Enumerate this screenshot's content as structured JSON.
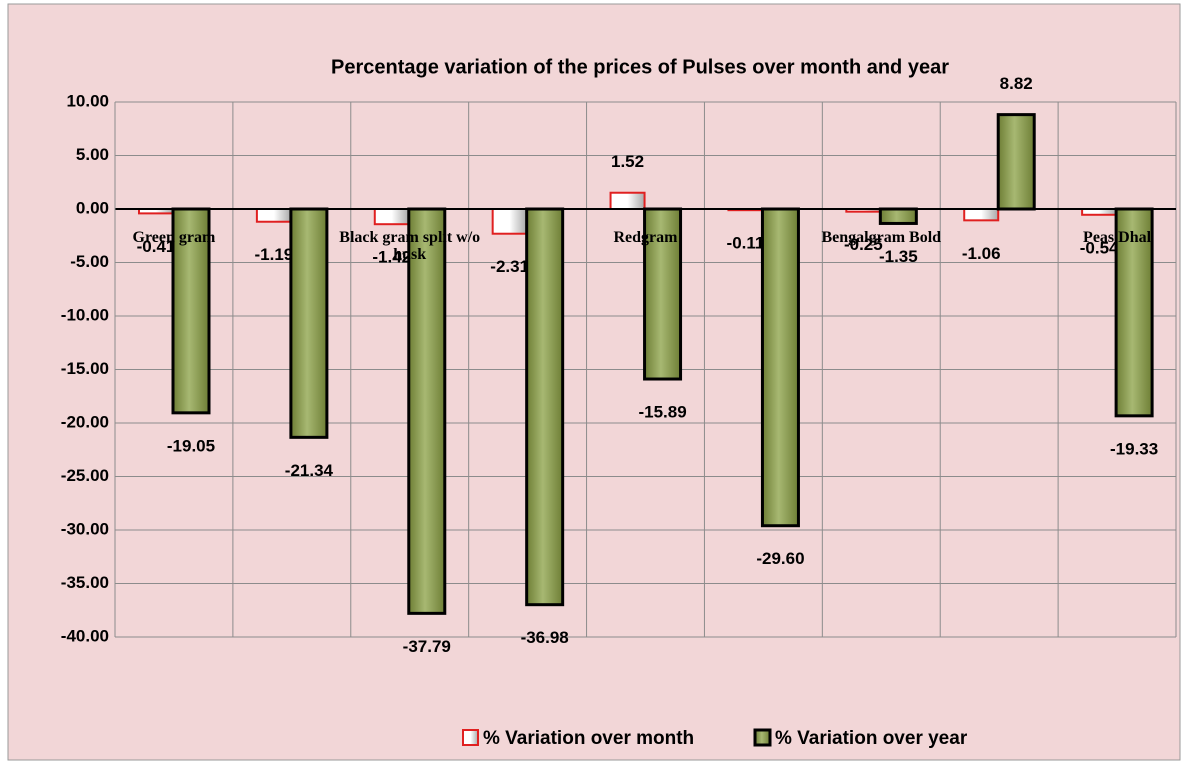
{
  "chart_data": {
    "type": "bar",
    "title": "Percentage variation of the prices of Pulses over month and year",
    "categories": [
      "Green gram",
      null,
      "Black gram  split w/o husk",
      null,
      "Redgram",
      null,
      "Bengalgram Bold",
      null,
      "Peas Dhal"
    ],
    "series": [
      {
        "name": "% Variation over month",
        "color": "#e02020",
        "values": [
          -0.41,
          -1.19,
          -1.42,
          -2.31,
          1.52,
          -0.11,
          -0.25,
          -1.06,
          -0.54
        ],
        "value_labels": [
          "-0.41",
          "-1.19",
          "-1.42",
          "-2.31",
          "1.52",
          "-0.11",
          "-0.25",
          "-1.06",
          "-0.54"
        ]
      },
      {
        "name": "% Variation over year",
        "color": "#8c9e4c",
        "values": [
          -19.05,
          -21.34,
          -37.79,
          -36.98,
          -15.89,
          -29.6,
          -1.35,
          8.82,
          -19.33
        ],
        "value_labels": [
          "-19.05",
          "-21.34",
          "-37.79",
          "-36.98",
          "-15.89",
          "-29.60",
          "-1.35",
          "8.82",
          "-19.33"
        ]
      }
    ],
    "ylim": [
      -40,
      10
    ],
    "yticks": [
      {
        "value": 10,
        "label": "10.00"
      },
      {
        "value": 5,
        "label": "5.00"
      },
      {
        "value": 0,
        "label": "0.00"
      },
      {
        "value": -5,
        "label": "-5.00"
      },
      {
        "value": -10,
        "label": "-10.00"
      },
      {
        "value": -15,
        "label": "-15.00"
      },
      {
        "value": -20,
        "label": "-20.00"
      },
      {
        "value": -25,
        "label": "-25.00"
      },
      {
        "value": -30,
        "label": "-30.00"
      },
      {
        "value": -35,
        "label": "-35.00"
      },
      {
        "value": -40,
        "label": "-40.00"
      }
    ],
    "grid": true,
    "legend": "bottom"
  }
}
